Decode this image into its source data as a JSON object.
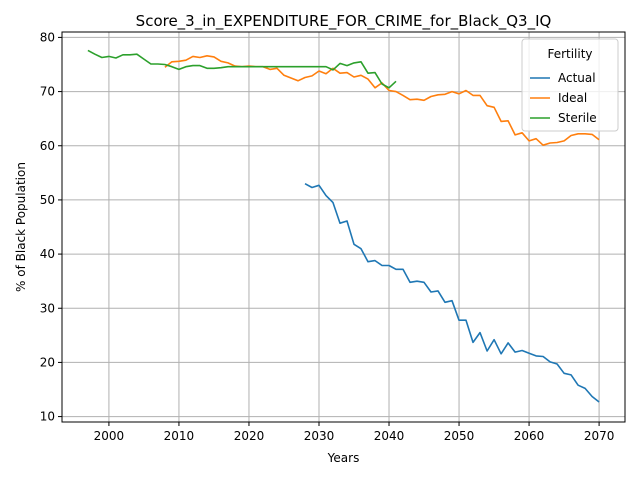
{
  "chart_data": {
    "type": "line",
    "title": "Score_3_in_EXPENDITURE_FOR_CRIME_for_Black_Q3_IQ",
    "xlabel": "Years",
    "ylabel": "% of Black Population",
    "xlim": [
      1993.3,
      2073.7
    ],
    "ylim": [
      9.0,
      81.0
    ],
    "xticks": [
      2000,
      2010,
      2020,
      2030,
      2040,
      2050,
      2060,
      2070
    ],
    "yticks": [
      10,
      20,
      30,
      40,
      50,
      60,
      70,
      80
    ],
    "grid": true,
    "legend": {
      "title": "Fertility",
      "position": "top-right"
    },
    "series": [
      {
        "name": "Actual",
        "color": "#1f77b4",
        "x": [
          2028,
          2029,
          2030,
          2031,
          2032,
          2033,
          2034,
          2035,
          2036,
          2037,
          2038,
          2039,
          2040,
          2041,
          2042,
          2043,
          2044,
          2045,
          2046,
          2047,
          2048,
          2049,
          2050,
          2051,
          2052,
          2053,
          2054,
          2055,
          2056,
          2057,
          2058,
          2059,
          2060,
          2061,
          2062,
          2063,
          2064,
          2065,
          2066,
          2067,
          2068,
          2069,
          2070
        ],
        "y": [
          53.0,
          52.3,
          52.7,
          50.8,
          49.5,
          45.7,
          46.1,
          41.8,
          41.0,
          38.6,
          38.8,
          37.9,
          37.9,
          37.2,
          37.2,
          34.8,
          35.0,
          34.8,
          33.0,
          33.2,
          31.1,
          31.4,
          27.8,
          27.8,
          23.7,
          25.5,
          22.1,
          24.2,
          21.6,
          23.6,
          21.9,
          22.2,
          21.7,
          21.2,
          21.1,
          20.1,
          19.7,
          18.0,
          17.7,
          15.8,
          15.2,
          13.7,
          12.7
        ]
      },
      {
        "name": "Ideal",
        "color": "#ff7f0e",
        "x": [
          2008,
          2009,
          2010,
          2011,
          2012,
          2013,
          2014,
          2015,
          2016,
          2017,
          2018,
          2019,
          2020,
          2021,
          2022,
          2023,
          2024,
          2025,
          2026,
          2027,
          2028,
          2029,
          2030,
          2031,
          2032,
          2033,
          2034,
          2035,
          2036,
          2037,
          2038,
          2039,
          2040,
          2041,
          2042,
          2043,
          2044,
          2045,
          2046,
          2047,
          2048,
          2049,
          2050,
          2051,
          2052,
          2053,
          2054,
          2055,
          2056,
          2057,
          2058,
          2059,
          2060,
          2061,
          2062,
          2063,
          2064,
          2065,
          2066,
          2067,
          2068,
          2069,
          2070
        ],
        "y": [
          74.5,
          75.5,
          75.6,
          75.8,
          76.5,
          76.3,
          76.6,
          76.4,
          75.6,
          75.3,
          74.7,
          74.6,
          74.7,
          74.6,
          74.6,
          74.1,
          74.3,
          73.0,
          72.5,
          72.0,
          72.6,
          72.9,
          73.8,
          73.3,
          74.3,
          73.4,
          73.5,
          72.7,
          73.0,
          72.3,
          70.7,
          71.6,
          70.2,
          70.0,
          69.3,
          68.5,
          68.6,
          68.4,
          69.1,
          69.4,
          69.5,
          70.0,
          69.6,
          70.2,
          69.3,
          69.3,
          67.4,
          67.1,
          64.5,
          64.6,
          62.0,
          62.4,
          60.9,
          61.3,
          60.1,
          60.5,
          60.6,
          60.9,
          61.9,
          62.2,
          62.2,
          62.1,
          61.1
        ]
      },
      {
        "name": "Sterile",
        "color": "#2ca02c",
        "x": [
          1997,
          1998,
          1999,
          2000,
          2001,
          2002,
          2003,
          2004,
          2005,
          2006,
          2007,
          2008,
          2009,
          2010,
          2011,
          2012,
          2013,
          2014,
          2015,
          2016,
          2017,
          2018,
          2019,
          2020,
          2021,
          2022,
          2023,
          2024,
          2025,
          2026,
          2027,
          2028,
          2029,
          2030,
          2031,
          2032,
          2033,
          2034,
          2035,
          2036,
          2037,
          2038,
          2039,
          2040,
          2041
        ],
        "y": [
          77.6,
          76.9,
          76.3,
          76.5,
          76.2,
          76.8,
          76.8,
          76.9,
          76.0,
          75.1,
          75.1,
          75.0,
          74.6,
          74.1,
          74.6,
          74.8,
          74.8,
          74.3,
          74.3,
          74.4,
          74.6,
          74.6,
          74.6,
          74.6,
          74.6,
          74.6,
          74.6,
          74.6,
          74.6,
          74.6,
          74.6,
          74.6,
          74.6,
          74.6,
          74.6,
          74.0,
          75.2,
          74.8,
          75.3,
          75.5,
          73.4,
          73.5,
          71.4,
          70.7,
          71.9
        ]
      }
    ]
  }
}
